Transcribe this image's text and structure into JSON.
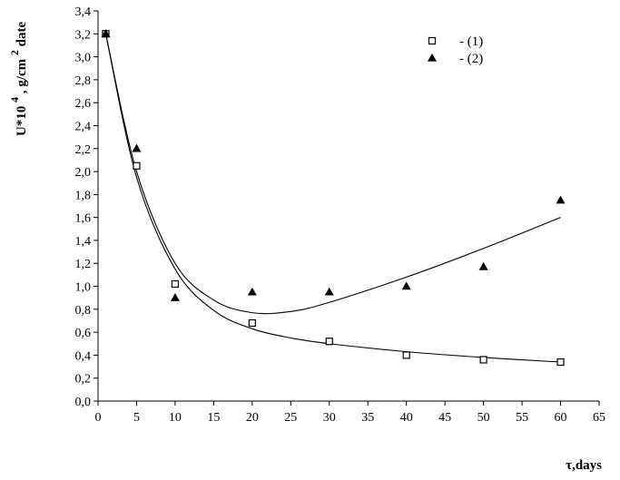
{
  "chart_data": {
    "type": "scatter",
    "title": "",
    "xlabel": "τ,days",
    "ylabel": {
      "main": "U*10",
      "exp1": "4",
      "mid": ", g/cm",
      "exp2": "2",
      "tail": "date"
    },
    "xlim": [
      0,
      65
    ],
    "ylim": [
      0,
      3.4
    ],
    "xticks": [
      "0",
      "5",
      "10",
      "15",
      "20",
      "25",
      "30",
      "35",
      "40",
      "45",
      "50",
      "55",
      "60",
      "65"
    ],
    "yticks": [
      "0,0",
      "0,2",
      "0,4",
      "0,6",
      "0,8",
      "1,0",
      "1,2",
      "1,4",
      "1,6",
      "1,8",
      "2,0",
      "2,2",
      "2,4",
      "2,6",
      "2,8",
      "3,0",
      "3,2",
      "3,4"
    ],
    "grid": false,
    "legend_position": "top-right",
    "series": [
      {
        "name": "- (1)",
        "marker": "square-open",
        "points": [
          {
            "x": 1,
            "y": 3.2
          },
          {
            "x": 5,
            "y": 2.05
          },
          {
            "x": 10,
            "y": 1.02
          },
          {
            "x": 20,
            "y": 0.68
          },
          {
            "x": 30,
            "y": 0.52
          },
          {
            "x": 40,
            "y": 0.4
          },
          {
            "x": 50,
            "y": 0.36
          },
          {
            "x": 60,
            "y": 0.34
          }
        ],
        "trend": [
          {
            "x": 1,
            "y": 3.2
          },
          {
            "x": 5,
            "y": 1.95
          },
          {
            "x": 10,
            "y": 1.15
          },
          {
            "x": 15,
            "y": 0.79
          },
          {
            "x": 20,
            "y": 0.63
          },
          {
            "x": 25,
            "y": 0.55
          },
          {
            "x": 30,
            "y": 0.5
          },
          {
            "x": 40,
            "y": 0.43
          },
          {
            "x": 50,
            "y": 0.38
          },
          {
            "x": 60,
            "y": 0.34
          }
        ]
      },
      {
        "name": "- (2)",
        "marker": "triangle-filled",
        "points": [
          {
            "x": 1,
            "y": 3.2
          },
          {
            "x": 5,
            "y": 2.2
          },
          {
            "x": 10,
            "y": 0.9
          },
          {
            "x": 20,
            "y": 0.95
          },
          {
            "x": 30,
            "y": 0.95
          },
          {
            "x": 40,
            "y": 1.0
          },
          {
            "x": 50,
            "y": 1.17
          },
          {
            "x": 60,
            "y": 1.75
          }
        ],
        "trend": [
          {
            "x": 1,
            "y": 3.2
          },
          {
            "x": 5,
            "y": 2.0
          },
          {
            "x": 10,
            "y": 1.2
          },
          {
            "x": 15,
            "y": 0.88
          },
          {
            "x": 20,
            "y": 0.77
          },
          {
            "x": 25,
            "y": 0.78
          },
          {
            "x": 30,
            "y": 0.86
          },
          {
            "x": 40,
            "y": 1.08
          },
          {
            "x": 50,
            "y": 1.33
          },
          {
            "x": 60,
            "y": 1.6
          }
        ]
      }
    ]
  }
}
